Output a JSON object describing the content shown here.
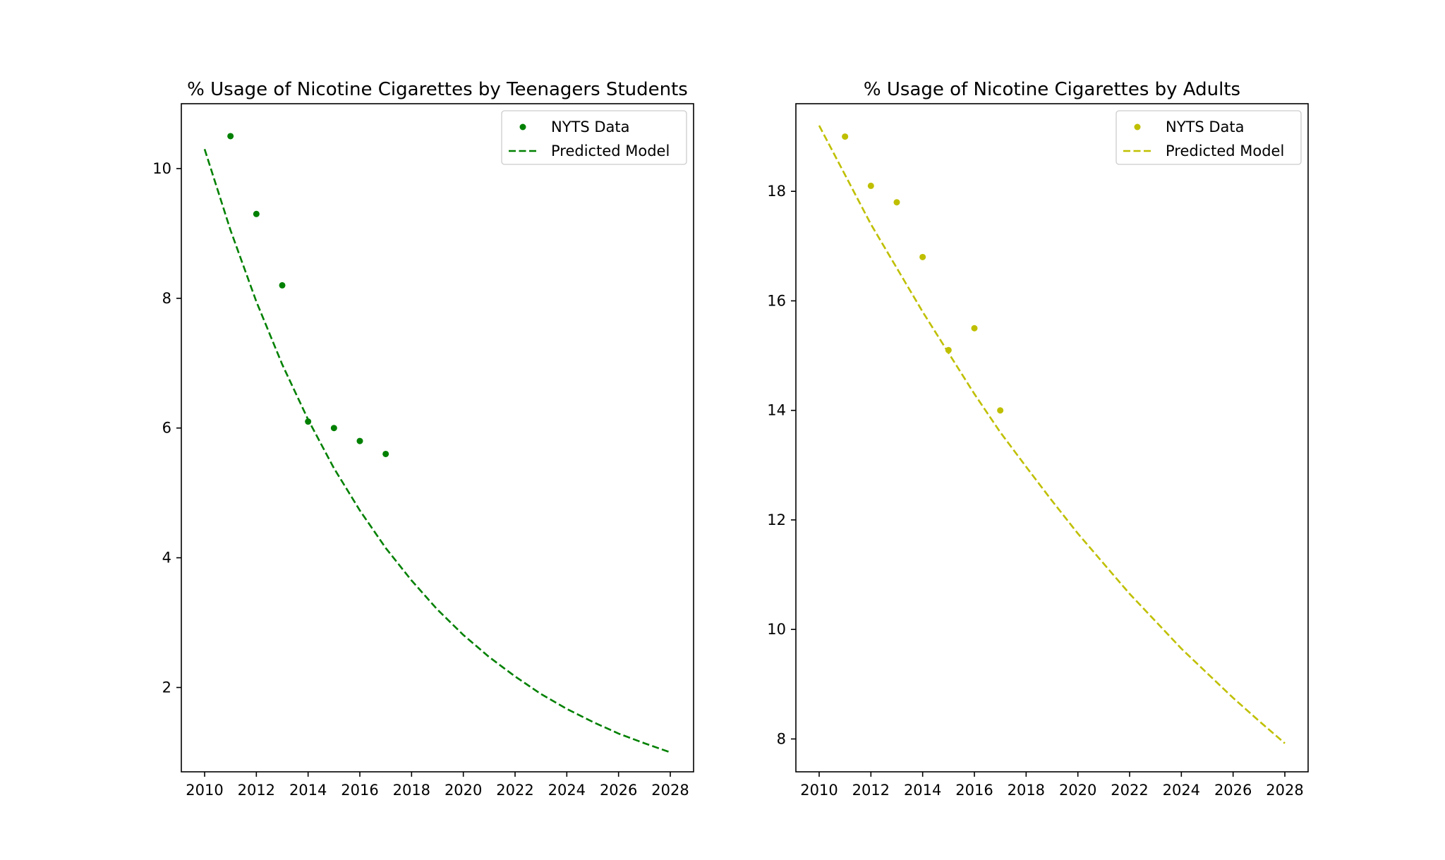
{
  "chart_data": [
    {
      "type": "scatter+line",
      "title": "% Usage of Nicotine Cigarettes by Teenagers Students",
      "xlabel": "",
      "ylabel": "",
      "xlim": [
        2009.1,
        2028.9
      ],
      "ylim": [
        0.7,
        11.0
      ],
      "xticks": [
        2010,
        2012,
        2014,
        2016,
        2018,
        2020,
        2022,
        2024,
        2026,
        2028
      ],
      "yticks": [
        2,
        4,
        6,
        8,
        10
      ],
      "grid": false,
      "legend_position": "top-right",
      "series": [
        {
          "name": "NYTS Data",
          "kind": "scatter",
          "color": "#008000",
          "x": [
            2011,
            2012,
            2013,
            2014,
            2015,
            2016,
            2017
          ],
          "y": [
            10.5,
            9.3,
            8.2,
            6.1,
            6.0,
            5.8,
            5.6
          ]
        },
        {
          "name": "Predicted Model",
          "kind": "line",
          "style": "dashed",
          "color": "#008000",
          "x": [
            2010,
            2011,
            2012,
            2013,
            2014,
            2015,
            2016,
            2017,
            2018,
            2019,
            2020,
            2021,
            2022,
            2023,
            2024,
            2025,
            2026,
            2027,
            2028
          ],
          "y": [
            10.3,
            9.05,
            7.95,
            6.98,
            6.13,
            5.38,
            4.73,
            4.15,
            3.65,
            3.2,
            2.81,
            2.47,
            2.17,
            1.9,
            1.67,
            1.47,
            1.29,
            1.14,
            1.0
          ]
        }
      ]
    },
    {
      "type": "scatter+line",
      "title": "% Usage of Nicotine Cigarettes by Adults",
      "xlabel": "",
      "ylabel": "",
      "xlim": [
        2009.1,
        2028.9
      ],
      "ylim": [
        7.4,
        19.6
      ],
      "xticks": [
        2010,
        2012,
        2014,
        2016,
        2018,
        2020,
        2022,
        2024,
        2026,
        2028
      ],
      "yticks": [
        8,
        10,
        12,
        14,
        16,
        18
      ],
      "grid": false,
      "legend_position": "top-right",
      "series": [
        {
          "name": "NYTS Data",
          "kind": "scatter",
          "color": "#bfbf00",
          "x": [
            2011,
            2012,
            2013,
            2014,
            2015,
            2016,
            2017
          ],
          "y": [
            19.0,
            18.1,
            17.8,
            16.8,
            15.1,
            15.5,
            14.0
          ]
        },
        {
          "name": "Predicted Model",
          "kind": "line",
          "style": "dashed",
          "color": "#bfbf00",
          "x": [
            2010,
            2011,
            2012,
            2013,
            2014,
            2015,
            2016,
            2017,
            2018,
            2019,
            2020,
            2021,
            2022,
            2023,
            2024,
            2025,
            2026,
            2027,
            2028
          ],
          "y": [
            19.2,
            18.3,
            17.4,
            16.6,
            15.8,
            15.05,
            14.3,
            13.6,
            12.97,
            12.35,
            11.75,
            11.2,
            10.65,
            10.15,
            9.65,
            9.2,
            8.75,
            8.33,
            7.92
          ]
        }
      ]
    }
  ]
}
